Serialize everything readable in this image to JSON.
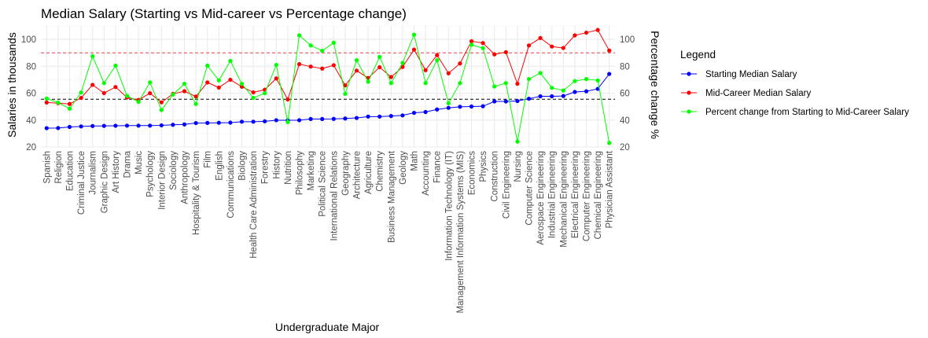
{
  "chart_data": {
    "type": "line",
    "title": "Median Salary (Starting vs Mid-career vs Percentage change)",
    "xlabel": "Undergraduate Major",
    "ylabel": "Salaries in thousands",
    "y2label": "Percentage change %",
    "ylim": [
      20,
      110
    ],
    "yticks": [
      20,
      40,
      60,
      80,
      100
    ],
    "y2ticks": [
      20,
      40,
      60,
      80,
      100
    ],
    "grid": true,
    "legend_position": "right",
    "legend_title": "Legend",
    "reference_lines": [
      {
        "value": 90,
        "color": "#e8424a",
        "style": "dashed"
      },
      {
        "value": 55.5,
        "color": "#000000",
        "style": "dashed"
      }
    ],
    "categories": [
      "Spanish",
      "Religion",
      "Education",
      "Criminal Justice",
      "Journalism",
      "Graphic Design",
      "Art History",
      "Drama",
      "Music",
      "Psychology",
      "Interior Design",
      "Sociology",
      "Anthropology",
      "Hospitality & Tourism",
      "Film",
      "English",
      "Communications",
      "Biology",
      "Health Care Administration",
      "Forestry",
      "History",
      "Nutrition",
      "Philosophy",
      "Marketing",
      "Political Science",
      "International Relations",
      "Geography",
      "Architecture",
      "Agriculture",
      "Chemistry",
      "Business Management",
      "Geology",
      "Math",
      "Accounting",
      "Finance",
      "Information Technology (IT)",
      "Management Information Systems (MIS)",
      "Economics",
      "Physics",
      "Construction",
      "Civil Engineering",
      "Nursing",
      "Computer Science",
      "Aerospace Engineering",
      "Industrial Engineering",
      "Mechanical Engineering",
      "Electrical Engineering",
      "Computer Engineering",
      "Chemical Engineering",
      "Physician Assistant"
    ],
    "series": [
      {
        "name": "Starting Median Salary",
        "color": "#0000ff",
        "values": [
          34.0,
          34.1,
          34.9,
          35.3,
          35.6,
          35.7,
          35.8,
          35.9,
          35.9,
          35.9,
          36.1,
          36.5,
          36.8,
          37.8,
          37.9,
          38.0,
          38.1,
          38.8,
          38.8,
          39.1,
          39.9,
          39.9,
          39.9,
          40.8,
          40.8,
          40.9,
          41.2,
          41.6,
          42.6,
          42.6,
          43.0,
          43.5,
          45.4,
          46.0,
          47.9,
          49.1,
          49.9,
          50.1,
          50.3,
          53.9,
          53.9,
          54.2,
          55.9,
          57.7,
          57.7,
          57.9,
          60.9,
          61.4,
          63.2,
          74.3
        ]
      },
      {
        "name": "Mid-Career Median Salary",
        "color": "#ff0000",
        "values": [
          53.1,
          52.6,
          52.0,
          56.5,
          66.2,
          60.1,
          64.6,
          56.8,
          55.0,
          60.0,
          53.2,
          59.5,
          61.5,
          57.5,
          68.0,
          64.2,
          70.0,
          64.8,
          60.6,
          62.6,
          71.0,
          55.3,
          81.6,
          79.8,
          78.3,
          80.8,
          65.8,
          76.8,
          71.3,
          79.3,
          72.0,
          79.5,
          92.4,
          77.1,
          88.3,
          74.8,
          82.1,
          98.6,
          97.3,
          88.9,
          90.5,
          67.0,
          95.5,
          101.0,
          94.7,
          93.6,
          103.0,
          105.0,
          107.0,
          91.7
        ]
      },
      {
        "name": "Percent change from Starting to Mid-Career Salary",
        "color": "#00ff00",
        "values": [
          56.0,
          53.0,
          48.5,
          60.5,
          87.5,
          67.5,
          80.5,
          58.0,
          53.5,
          68.0,
          47.5,
          59.0,
          67.0,
          52.0,
          80.5,
          69.5,
          84.0,
          67.0,
          56.5,
          60.0,
          81.0,
          38.5,
          103.0,
          95.5,
          91.5,
          97.5,
          59.5,
          84.5,
          68.5,
          87.0,
          67.5,
          82.5,
          103.5,
          67.5,
          84.5,
          52.5,
          67.5,
          96.0,
          93.5,
          65.0,
          67.5,
          24.0,
          70.5,
          75.0,
          64.0,
          62.0,
          69.0,
          70.5,
          69.5,
          23.0
        ]
      }
    ]
  }
}
